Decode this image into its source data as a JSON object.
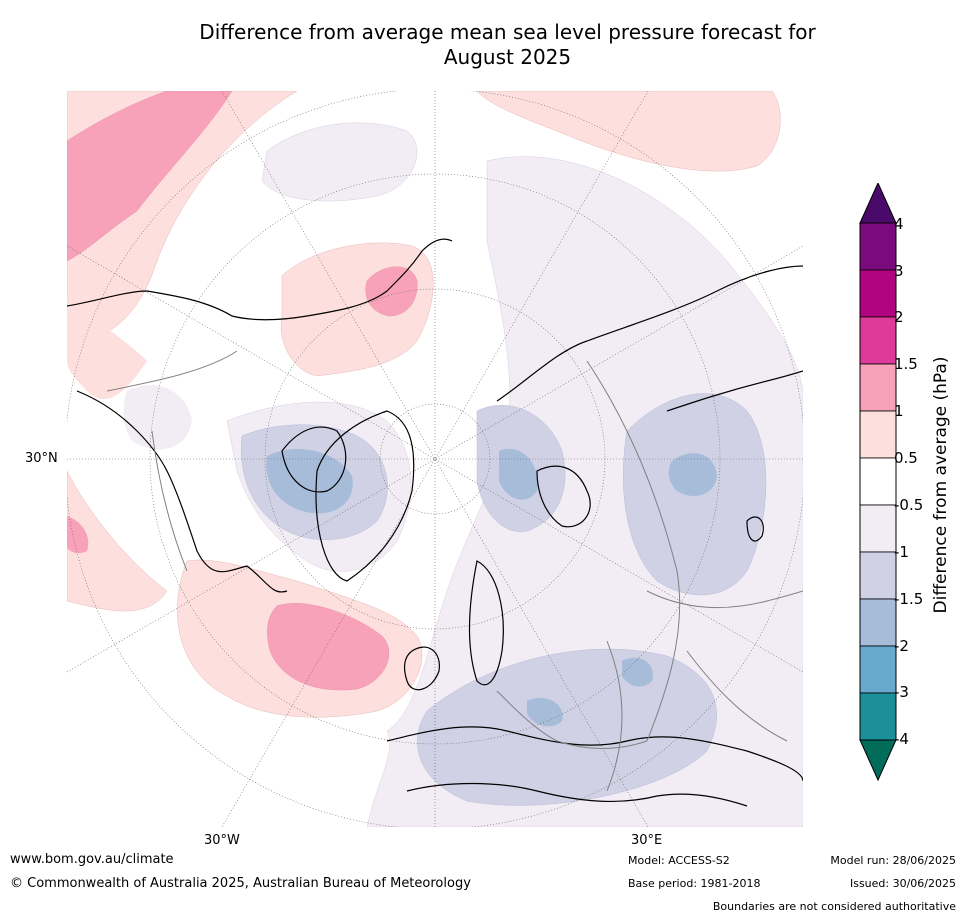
{
  "title_line1": "Difference from average mean sea level pressure forecast for",
  "title_line2": "August 2025",
  "map": {
    "projection": "north polar stereographic",
    "lat_labels": [
      {
        "text": "30°N"
      }
    ],
    "lon_labels": [
      {
        "text": "30°W"
      },
      {
        "text": "30°E"
      }
    ],
    "land_outline_color": "#000000",
    "boundary_color": "#808080"
  },
  "colorbar": {
    "title": "Difference from average (hPa)",
    "ticks": [
      "4",
      "3",
      "2",
      "1.5",
      "1",
      "0.5",
      "-0.5",
      "-1",
      "-1.5",
      "-2",
      "-3",
      "-4"
    ],
    "levels": [
      {
        "range": "3 to 4",
        "color": "#7b0a7e"
      },
      {
        "range": "2 to 3",
        "color": "#b0057e"
      },
      {
        "range": "1.5 to 2",
        "color": "#de3a9a"
      },
      {
        "range": "1 to 1.5",
        "color": "#f8a2b9"
      },
      {
        "range": "0.5 to 1",
        "color": "#fde0de"
      },
      {
        "range": "-0.5 to 0.5",
        "color": "#ffffff"
      },
      {
        "range": "-1 to -0.5",
        "color": "#f2ecf4"
      },
      {
        "range": "-1.5 to -1",
        "color": "#d0d1e5"
      },
      {
        "range": "-2 to -1.5",
        "color": "#a6bcd9"
      },
      {
        "range": "-3 to -2",
        "color": "#67a9cf"
      },
      {
        "range": "-4 to -3",
        "color": "#1c9099"
      }
    ],
    "over_color": "#4a0a6b",
    "under_color": "#016c59"
  },
  "footer": {
    "website": "www.bom.gov.au/climate",
    "copyright": "© Commonwealth of Australia 2025, Australian Bureau of Meteorology",
    "model": "Model: ACCESS-S2",
    "base_period": "Base period: 1981-2018",
    "model_run": "Model run: 28/06/2025",
    "issued": "Issued: 30/06/2025",
    "disclaimer": "Boundaries are not considered authoritative"
  }
}
